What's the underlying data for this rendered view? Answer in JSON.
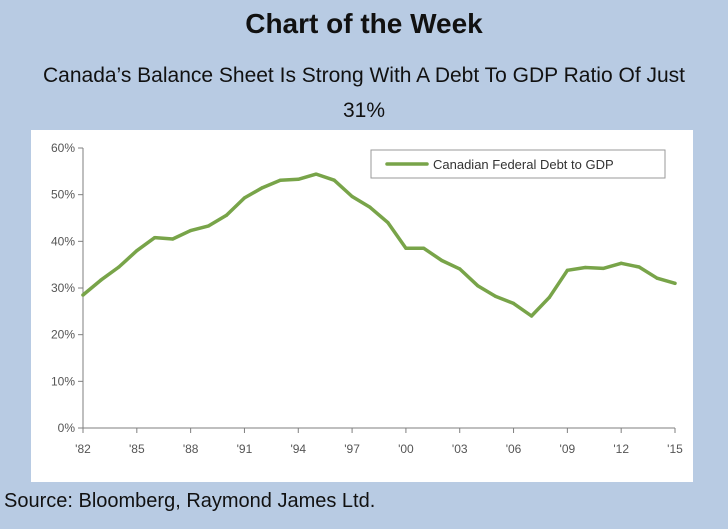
{
  "header": {
    "title": "Chart of the Week",
    "subtitle": "Canada’s Balance Sheet Is Strong With A Debt To GDP Ratio Of Just 31%"
  },
  "source": "Source: Bloomberg, Raymond James Ltd.",
  "colors": {
    "background": "#b8cbe3",
    "line": "#78a449",
    "axis": "#7f7f7f"
  },
  "chart_data": {
    "type": "line",
    "title": "",
    "xlabel": "",
    "ylabel": "",
    "x": [
      1982,
      1983,
      1984,
      1985,
      1986,
      1987,
      1988,
      1989,
      1990,
      1991,
      1992,
      1993,
      1994,
      1995,
      1996,
      1997,
      1998,
      1999,
      2000,
      2001,
      2002,
      2003,
      2004,
      2005,
      2006,
      2007,
      2008,
      2009,
      2010,
      2011,
      2012,
      2013,
      2014,
      2015
    ],
    "xticks": [
      1982,
      1985,
      1988,
      1991,
      1994,
      1997,
      2000,
      2003,
      2006,
      2009,
      2012,
      2015
    ],
    "xtick_labels": [
      "'82",
      "'85",
      "'88",
      "'91",
      "'94",
      "'97",
      "'00",
      "'03",
      "'06",
      "'09",
      "'12",
      "'15"
    ],
    "yticks": [
      0,
      10,
      20,
      30,
      40,
      50,
      60
    ],
    "ytick_labels": [
      "0%",
      "10%",
      "20%",
      "30%",
      "40%",
      "50%",
      "60%"
    ],
    "ylim": [
      0,
      60
    ],
    "legend_position": "top-right",
    "series": [
      {
        "name": "Canadian Federal Debt to GDP",
        "values": [
          28.5,
          31.7,
          34.5,
          38.0,
          40.8,
          40.5,
          42.3,
          43.3,
          45.6,
          49.3,
          51.5,
          53.1,
          53.3,
          54.4,
          53.1,
          49.6,
          47.3,
          44.0,
          38.5,
          38.5,
          35.9,
          34.1,
          30.5,
          28.2,
          26.7,
          24.0,
          28.0,
          33.8,
          34.4,
          34.2,
          35.3,
          34.5,
          32.1,
          31.0
        ]
      }
    ]
  }
}
